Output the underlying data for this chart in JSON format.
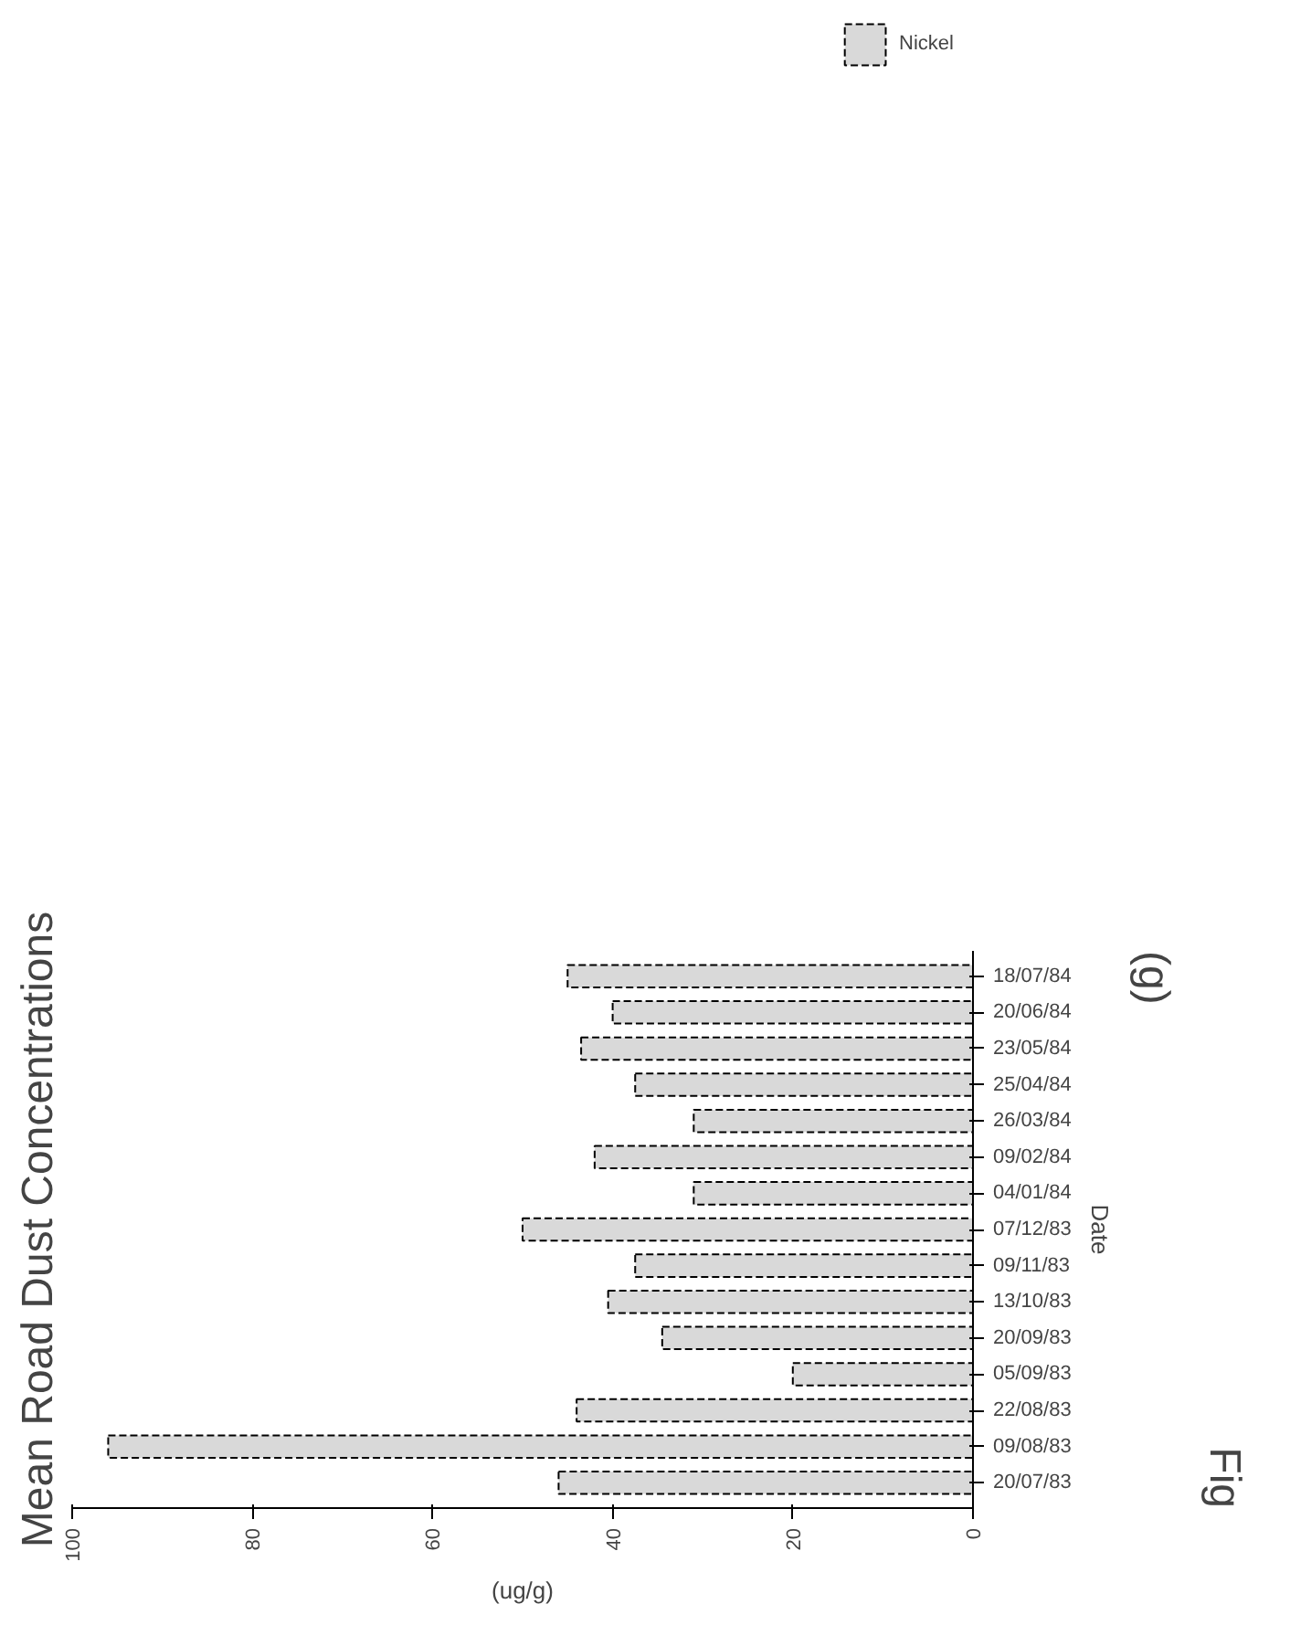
{
  "chart_data": {
    "type": "bar",
    "orientation": "horizontal",
    "title": "Mean Road Dust Concentrations",
    "xlabel": "(ug/g)",
    "ylabel": "Date",
    "categories": [
      "18/07/84",
      "20/06/84",
      "23/05/84",
      "25/04/84",
      "26/03/84",
      "09/02/84",
      "04/01/84",
      "07/12/83",
      "09/11/83",
      "13/10/83",
      "20/09/83",
      "05/09/83",
      "22/08/83",
      "09/08/83",
      "20/07/83"
    ],
    "series": [
      {
        "name": "Nickel",
        "color": "#d9d9d9",
        "values": [
          45,
          40,
          43.5,
          37.5,
          31,
          42,
          31,
          50,
          37.5,
          40.5,
          34.5,
          20,
          44,
          96,
          46
        ]
      }
    ],
    "xlim": [
      100,
      0
    ],
    "xticks": [
      100,
      80,
      60,
      40,
      20,
      0
    ],
    "grid": false,
    "legend": "top right",
    "annotations": [
      "(g)",
      "Fig"
    ]
  }
}
